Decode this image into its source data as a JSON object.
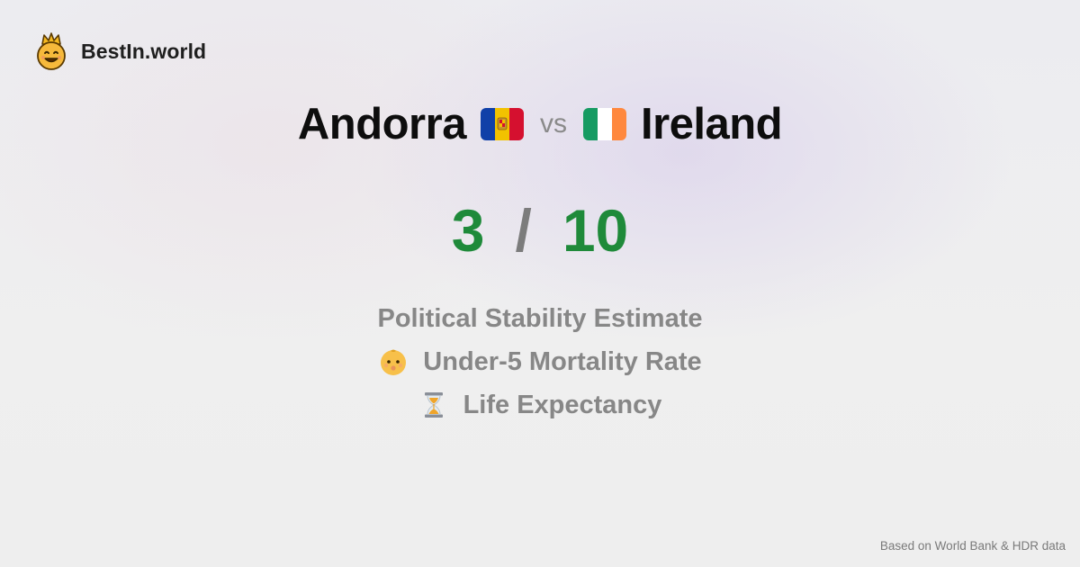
{
  "brand": {
    "name": "BestIn.world",
    "icon": "crowned-smiley-icon"
  },
  "comparison": {
    "country_a": {
      "name": "Andorra",
      "flag": "andorra-flag-icon",
      "colors": [
        "#1040a8",
        "#f2c200",
        "#d5102f"
      ]
    },
    "separator": "vs",
    "country_b": {
      "name": "Ireland",
      "flag": "ireland-flag-icon",
      "colors": [
        "#169b62",
        "#ffffff",
        "#ff883e"
      ]
    }
  },
  "score": {
    "a": "3",
    "separator": "/",
    "b": "10",
    "color": "#1f8a3a"
  },
  "metrics": [
    {
      "label": "Political Stability Estimate",
      "icon": ""
    },
    {
      "label": "Under-5 Mortality Rate",
      "icon": "baby-face-icon"
    },
    {
      "label": "Life Expectancy",
      "icon": "hourglass-icon"
    }
  ],
  "footer": {
    "source": "Based on World Bank & HDR data"
  }
}
